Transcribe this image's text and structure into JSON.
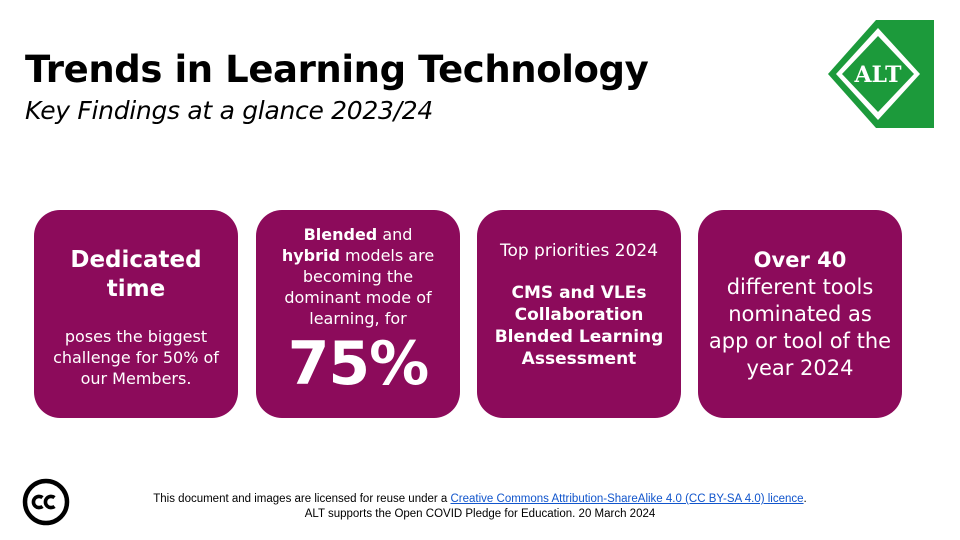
{
  "header": {
    "title": "Trends in Learning Technology",
    "subtitle": "Key Findings at a glance 2023/24"
  },
  "logo": {
    "text": "ALT",
    "colors": {
      "green": "#1c9a3b",
      "white": "#ffffff"
    }
  },
  "cards": {
    "card1": {
      "heading_line1": "Dedicated",
      "heading_line2": "time",
      "body": "poses the biggest challenge for 50% of our Members."
    },
    "card2": {
      "bold1": "Blended",
      "text1": " and ",
      "bold2": "hybrid",
      "text2": " models are becoming the dominant mode of learning, for",
      "big_number": "75%"
    },
    "card3": {
      "heading": "Top priorities 2024",
      "items": [
        "CMS and VLEs",
        "Collaboration",
        "Blended Learning",
        "Assessment"
      ]
    },
    "card4": {
      "bold": "Over 40",
      "text": "different tools nominated as app or tool of the year 2024"
    }
  },
  "footer": {
    "line1_prefix": "This document and images are licensed for reuse under a ",
    "license_link": "Creative Commons Attribution-ShareAlike 4.0 (CC BY-SA 4.0) licence",
    "line1_suffix": ".",
    "line2": "ALT supports the Open COVID Pledge for Education. 20 March 2024",
    "cc_icon": "creative-commons-icon"
  },
  "colors": {
    "card_background": "#8c0b5b",
    "card_text": "#ffffff",
    "link": "#1155cc"
  }
}
